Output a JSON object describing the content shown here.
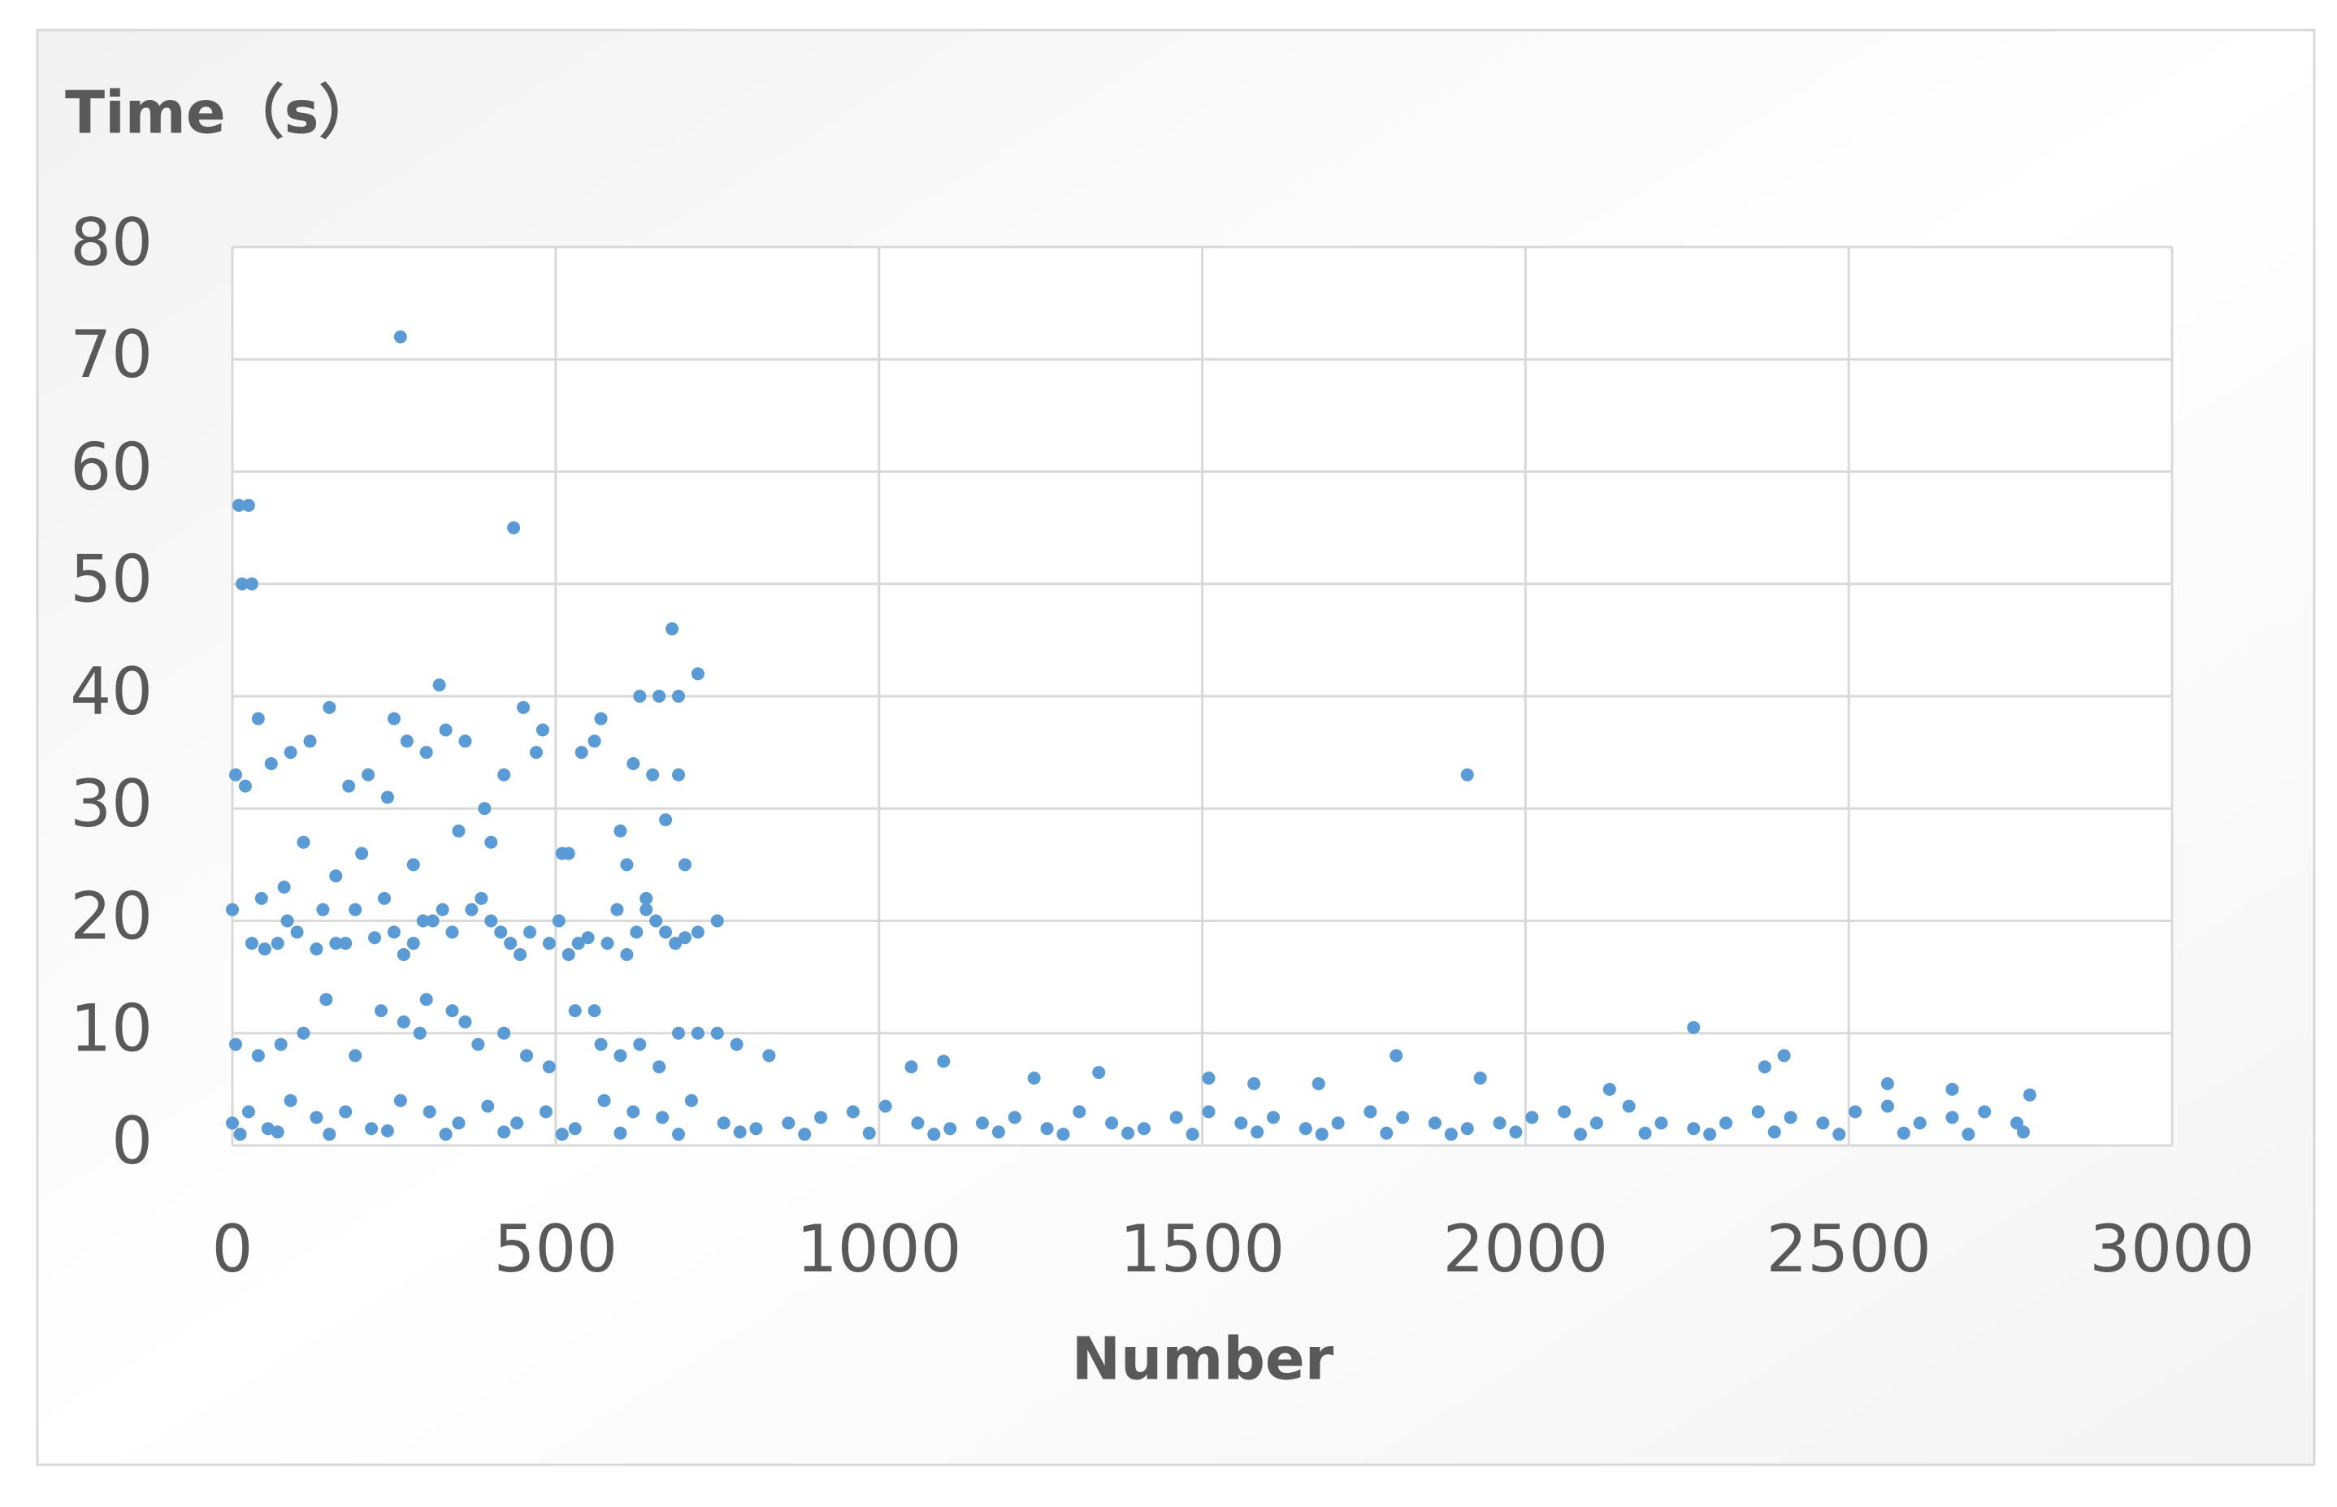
{
  "chart_data": {
    "type": "scatter",
    "y_label": "Time（s）",
    "x_label": "Number",
    "color": "#5b9bd5",
    "grid": true,
    "xlim": [
      0,
      3000
    ],
    "xticks": [
      0,
      500,
      1000,
      1500,
      2000,
      2500,
      3000
    ],
    "ylim": [
      0,
      80
    ],
    "yticks": [
      0,
      10,
      20,
      30,
      40,
      50,
      60,
      70,
      80
    ],
    "x": [
      260,
      10,
      25,
      15,
      30,
      435,
      680,
      720,
      320,
      630,
      660,
      690,
      40,
      250,
      1910,
      2260,
      1800,
      2400,
      2370,
      830,
      1050,
      1100,
      1240,
      1340,
      1510,
      1580,
      1680,
      1930,
      2130,
      2560,
      2660,
      5,
      20,
      60,
      90,
      120,
      150,
      180,
      210,
      240,
      270,
      300,
      330,
      360,
      390,
      420,
      450,
      480,
      510,
      540,
      570,
      600,
      620,
      650,
      670,
      690,
      700,
      110,
      200,
      350,
      470,
      560,
      640,
      80,
      160,
      280,
      400,
      520,
      610,
      0,
      30,
      50,
      70,
      100,
      130,
      160,
      190,
      220,
      250,
      280,
      310,
      340,
      370,
      400,
      430,
      460,
      490,
      520,
      550,
      580,
      610,
      640,
      670,
      700,
      45,
      85,
      140,
      175,
      235,
      265,
      295,
      325,
      385,
      415,
      445,
      505,
      535,
      595,
      625,
      655,
      685,
      720,
      750,
      5,
      40,
      75,
      110,
      145,
      190,
      230,
      265,
      300,
      340,
      380,
      420,
      455,
      490,
      530,
      570,
      600,
      630,
      660,
      690,
      720,
      750,
      780,
      290,
      360,
      560,
      0,
      25,
      55,
      90,
      130,
      175,
      215,
      260,
      305,
      350,
      395,
      440,
      485,
      530,
      575,
      620,
      665,
      710,
      760,
      810,
      860,
      910,
      960,
      1010,
      1060,
      1110,
      1160,
      1210,
      1260,
      1310,
      1360,
      1410,
      1460,
      1510,
      1560,
      1610,
      1660,
      1710,
      1760,
      1810,
      1860,
      1910,
      1960,
      2010,
      2060,
      2110,
      2160,
      2210,
      2260,
      2310,
      2360,
      2410,
      2460,
      2510,
      2560,
      2610,
      2660,
      2710,
      2760,
      2780,
      12,
      70,
      150,
      240,
      330,
      420,
      510,
      600,
      690,
      785,
      885,
      985,
      1085,
      1185,
      1285,
      1385,
      1485,
      1585,
      1685,
      1785,
      1885,
      1985,
      2085,
      2185,
      2285,
      2385,
      2485,
      2585,
      2685,
      2770
    ],
    "values": [
      72,
      57,
      57,
      50,
      50,
      55,
      46,
      42,
      41,
      40,
      40,
      40,
      38,
      38,
      33,
      10.5,
      8,
      8,
      7,
      8,
      7,
      7.5,
      6,
      6.5,
      6,
      5.5,
      5.5,
      6,
      5,
      5.5,
      5,
      33,
      32,
      34,
      35,
      36,
      39,
      32,
      33,
      31,
      36,
      35,
      37,
      36,
      30,
      33,
      39,
      37,
      26,
      35,
      38,
      28,
      34,
      33,
      29,
      33,
      25,
      27,
      26,
      28,
      35,
      36,
      22,
      23,
      24,
      25,
      27,
      26,
      25,
      21,
      18,
      17.5,
      18,
      19,
      17.5,
      18,
      21,
      18.5,
      19,
      18,
      20,
      19,
      21,
      20,
      18,
      19,
      18,
      17,
      18.5,
      18,
      17,
      21,
      19,
      18.5,
      22,
      20,
      21,
      18,
      22,
      17,
      20,
      21,
      22,
      19,
      17,
      20,
      18,
      21,
      19,
      20,
      18,
      19,
      20,
      9,
      8,
      9,
      10,
      13,
      8,
      12,
      11,
      13,
      12,
      9,
      10,
      8,
      7,
      12,
      9,
      8,
      9,
      7,
      10,
      10,
      10,
      9,
      10,
      11,
      12,
      2,
      3,
      1.5,
      4,
      2.5,
      3,
      1.5,
      4,
      3,
      2,
      3.5,
      2,
      3,
      1.5,
      4,
      3,
      2.5,
      4,
      2,
      1.5,
      2,
      2.5,
      3,
      3.5,
      2,
      1.5,
      2,
      2.5,
      1.5,
      3,
      2,
      1.5,
      2.5,
      3,
      2,
      2.5,
      1.5,
      2,
      3,
      2.5,
      2,
      1.5,
      2,
      2.5,
      3,
      2,
      3.5,
      2,
      1.5,
      2,
      3,
      2.5,
      2,
      3,
      3.5,
      2,
      2.5,
      3,
      2,
      4.5,
      1,
      1.2,
      1,
      1.3,
      1,
      1.2,
      1,
      1.1,
      1,
      1.2,
      1,
      1.1,
      1,
      1.2,
      1,
      1.1,
      1,
      1.2,
      1,
      1.1,
      1,
      1.2,
      1,
      1.1,
      1,
      1.2,
      1,
      1.1,
      1,
      1.2
    ]
  }
}
